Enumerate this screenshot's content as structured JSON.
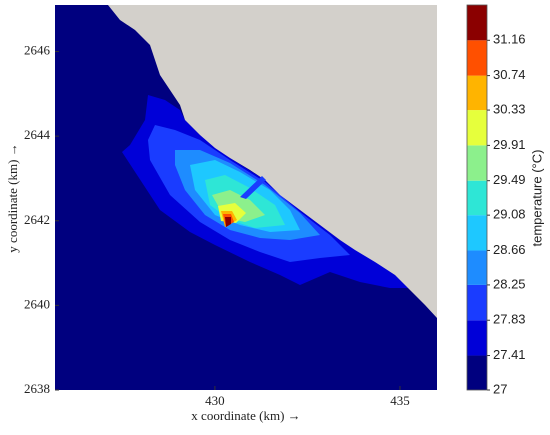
{
  "chart_data": {
    "type": "contour",
    "xlabel": "x coordinate (km) →",
    "ylabel": "y coordinate (km) →",
    "xlim": [
      425.68,
      436
    ],
    "xticks": [
      430,
      435
    ],
    "ylim": [
      2638,
      2647.1
    ],
    "yticks": [
      2638,
      2640,
      2642,
      2644,
      2646
    ],
    "land_color": "#d3d0cb",
    "colorbar": {
      "label": "temperature (°C)",
      "lim": [
        27,
        31.58
      ],
      "ticks": [
        27,
        27.41,
        27.83,
        28.25,
        28.66,
        29.08,
        29.49,
        29.91,
        30.33,
        30.74,
        31.16
      ],
      "colors": [
        "#00007f",
        "#0000d8",
        "#1a3cff",
        "#1e8cff",
        "#1ec8ff",
        "#2ee6d6",
        "#8cf08c",
        "#e6ff3c",
        "#ffb400",
        "#ff5000",
        "#8b0000"
      ]
    }
  }
}
